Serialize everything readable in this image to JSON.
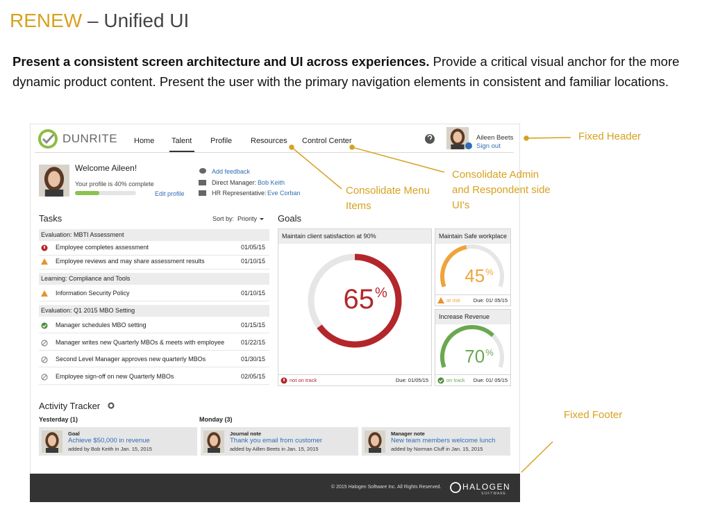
{
  "slide": {
    "title_accent": "RENEW",
    "title": "– Unified UI",
    "intro_bold": "Present a consistent screen architecture and UI across experiences.",
    "intro": " Provide a critical visual anchor for the more dynamic product content. Present the user with the primary navigation elements in consistent and familiar locations."
  },
  "header": {
    "logo": "DUNRITE",
    "nav": [
      "Home",
      "Talent",
      "Profile",
      "Resources",
      "Control Center"
    ],
    "user": "Aileen Beets",
    "sign_out": "Sign out"
  },
  "profile": {
    "welcome": "Welcome Aileen!",
    "completion_text": "Your profile is 40% complete",
    "completion": 40,
    "edit": "Edit profile",
    "feedback": "Add feedback",
    "manager_label": "Direct Manager:",
    "manager": "Bob Keith",
    "hr_label": "HR Representative:",
    "hr": "Eve Corban"
  },
  "tasks": {
    "title": "Tasks",
    "sort_label": "Sort by:",
    "sort_value": "Priority",
    "groups": [
      {
        "name": "Evaluation: MBTI Assessment",
        "items": [
          {
            "text": "Employee completes assessment",
            "date": "01/05/15"
          },
          {
            "text": "Employee reviews and may share assessment results",
            "date": "01/10/15"
          }
        ]
      },
      {
        "name": "Learning: Compliance and Tools",
        "items": [
          {
            "text": "Information Security Policy",
            "date": "01/10/15"
          }
        ]
      },
      {
        "name": "Evaluation: Q1 2015 MBO Setting",
        "items": [
          {
            "text": "Manager schedules MBO setting",
            "date": "01/15/15"
          },
          {
            "text": "Manager writes new Quarterly MBOs & meets with employee",
            "date": "01/22/15"
          },
          {
            "text": "Second Level Manager approves new quarterly MBOs",
            "date": "01/30/15"
          },
          {
            "text": "Employee sign-off on new Quarterly MBOs",
            "date": "02/05/15"
          }
        ]
      }
    ]
  },
  "goals": {
    "title": "Goals",
    "cards": [
      {
        "name": "Maintain client satisfaction at 90%",
        "value": 65,
        "unit": "%",
        "status": "not on track",
        "due": "Due: 01/05/15"
      },
      {
        "name": "Maintain Safe workplace",
        "value": 45,
        "unit": "%",
        "status": "at risk",
        "due": "Due: 01/ 05/15"
      },
      {
        "name": "Increase Revenue",
        "value": 70,
        "unit": "%",
        "status": "on track",
        "due": "Due: 01/ 05/15"
      }
    ]
  },
  "activity": {
    "title": "Activity Tracker",
    "days": [
      "Yesterday (1)",
      "Monday (3)"
    ],
    "items": [
      {
        "kind": "Goal",
        "text": "Achieve $50,000 in revenue",
        "by": "added by Bob Keith in Jan. 15, 2015"
      },
      {
        "kind": "Journal note",
        "text": "Thank you email from customer",
        "by": "added by Aillen Beets in Jan. 15, 2015"
      },
      {
        "kind": "Manager note",
        "text": "New team members welcome lunch",
        "by": "added by Norman Cluff in Jan. 15, 2015"
      }
    ]
  },
  "footer": {
    "copyright": "© 2015 Halogen Software Inc. All Rights Reserved.",
    "brand": "HALOGEN",
    "brand_sub": "SOFTWARE"
  },
  "annotations": [
    "Fixed Header",
    "Consolidate Admin and Respondent side UI's",
    "Consolidate Menu Items",
    "Fixed Footer"
  ]
}
